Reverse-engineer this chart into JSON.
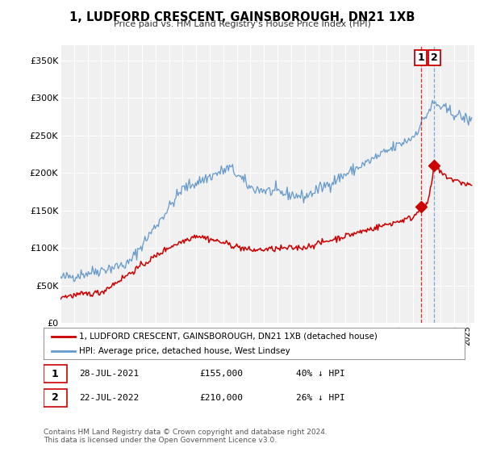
{
  "title": "1, LUDFORD CRESCENT, GAINSBOROUGH, DN21 1XB",
  "subtitle": "Price paid vs. HM Land Registry's House Price Index (HPI)",
  "ylim": [
    0,
    370000
  ],
  "yticks": [
    0,
    50000,
    100000,
    150000,
    200000,
    250000,
    300000,
    350000
  ],
  "ytick_labels": [
    "£0",
    "£50K",
    "£100K",
    "£150K",
    "£200K",
    "£250K",
    "£300K",
    "£350K"
  ],
  "red_line_label": "1, LUDFORD CRESCENT, GAINSBOROUGH, DN21 1XB (detached house)",
  "blue_line_label": "HPI: Average price, detached house, West Lindsey",
  "transaction1_date": "28-JUL-2021",
  "transaction1_price": "£155,000",
  "transaction1_hpi": "40% ↓ HPI",
  "transaction2_date": "22-JUL-2022",
  "transaction2_price": "£210,000",
  "transaction2_hpi": "26% ↓ HPI",
  "footnote": "Contains HM Land Registry data © Crown copyright and database right 2024.\nThis data is licensed under the Open Government Licence v3.0.",
  "vline1_x": 2021.55,
  "vline2_x": 2022.55,
  "point1_x": 2021.55,
  "point1_y": 155000,
  "point2_x": 2022.55,
  "point2_y": 210000,
  "red_color": "#cc0000",
  "blue_color": "#6699cc",
  "vline2_color": "#6699cc",
  "background_color": "#f0f0f0",
  "xlim_left": 1995.0,
  "xlim_right": 2025.5
}
